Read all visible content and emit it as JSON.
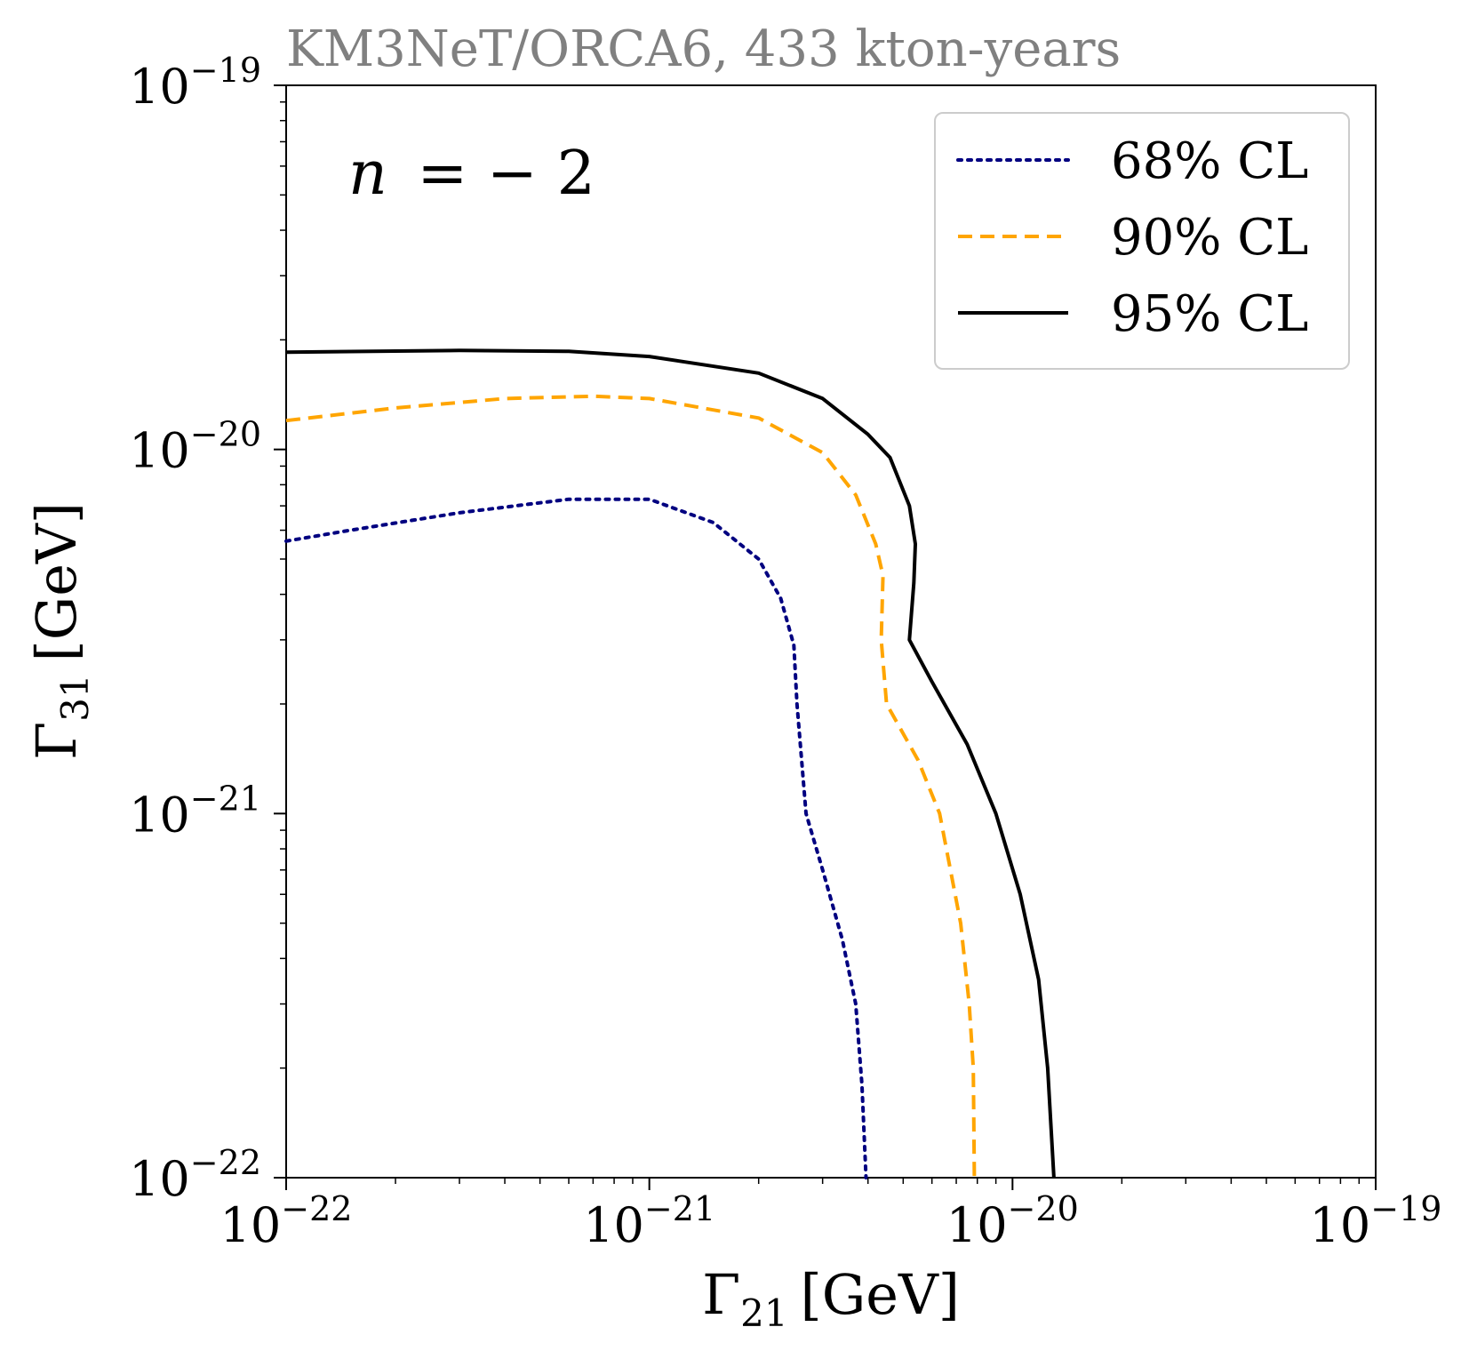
{
  "chart_data": {
    "type": "line",
    "title": "KM3NeT/ORCA6, 433 kton-years",
    "annotation": {
      "text": "n = − 2",
      "var": "n",
      "rest": "= − 2"
    },
    "xlabel": {
      "symbol": "Γ",
      "sub": "21",
      "unit": "[GeV]"
    },
    "ylabel": {
      "symbol": "Γ",
      "sub": "31",
      "unit": "[GeV]"
    },
    "xscale": "log",
    "yscale": "log",
    "xlim": [
      1e-22,
      1e-19
    ],
    "ylim": [
      1e-22,
      1e-19
    ],
    "xticks": [
      {
        "value": 1e-22,
        "base": "10",
        "exp": "−22"
      },
      {
        "value": 1e-21,
        "base": "10",
        "exp": "−21"
      },
      {
        "value": 1e-20,
        "base": "10",
        "exp": "−20"
      },
      {
        "value": 1e-19,
        "base": "10",
        "exp": "−19"
      }
    ],
    "yticks": [
      {
        "value": 1e-22,
        "base": "10",
        "exp": "−22"
      },
      {
        "value": 1e-21,
        "base": "10",
        "exp": "−21"
      },
      {
        "value": 1e-20,
        "base": "10",
        "exp": "−20"
      },
      {
        "value": 1e-19,
        "base": "10",
        "exp": "−19"
      }
    ],
    "grid": false,
    "legend_position": "top-right",
    "series": [
      {
        "name": "68% CL",
        "color": "#000080",
        "style": "dotted",
        "x": [
          1e-22,
          1.5e-22,
          3e-22,
          6e-22,
          1e-21,
          1.5e-21,
          2e-21,
          2.3e-21,
          2.5e-21,
          2.55e-21,
          2.7e-21,
          3e-21,
          3.4e-21,
          3.7e-21,
          3.85e-21,
          3.95e-21
        ],
        "y": [
          5.6e-21,
          6e-21,
          6.7e-21,
          7.3e-21,
          7.3e-21,
          6.3e-21,
          5e-21,
          3.9e-21,
          2.9e-21,
          2e-21,
          1e-21,
          7e-22,
          4.5e-22,
          3e-22,
          1.8e-22,
          1e-22
        ]
      },
      {
        "name": "90% CL",
        "color": "#FFA500",
        "style": "dashed",
        "x": [
          1e-22,
          2e-22,
          4e-22,
          7e-22,
          1e-21,
          2e-21,
          3e-21,
          3.7e-21,
          4.2e-21,
          4.4e-21,
          4.35e-21,
          4.5e-21,
          5.5e-21,
          6.3e-21,
          7.2e-21,
          7.6e-21,
          7.8e-21,
          7.85e-21
        ],
        "y": [
          1.2e-20,
          1.3e-20,
          1.38e-20,
          1.4e-20,
          1.38e-20,
          1.22e-20,
          9.8e-21,
          7.5e-21,
          5.5e-21,
          4.5e-21,
          3e-21,
          2e-21,
          1.4e-21,
          1e-21,
          5e-22,
          3e-22,
          2e-22,
          1e-22
        ]
      },
      {
        "name": "95% CL",
        "color": "#000000",
        "style": "solid",
        "x": [
          1e-22,
          3e-22,
          6e-22,
          1e-21,
          2e-21,
          3e-21,
          4e-21,
          4.6e-21,
          5.2e-21,
          5.4e-21,
          5.35e-21,
          5.2e-21,
          6e-21,
          7.5e-21,
          9e-21,
          1.05e-20,
          1.18e-20,
          1.25e-20,
          1.3e-20
        ],
        "y": [
          1.85e-20,
          1.87e-20,
          1.86e-20,
          1.8e-20,
          1.62e-20,
          1.38e-20,
          1.1e-20,
          9.5e-21,
          7e-21,
          5.5e-21,
          4.3e-21,
          3e-21,
          2.3e-21,
          1.55e-21,
          1e-21,
          6e-22,
          3.5e-22,
          2e-22,
          1e-22
        ]
      }
    ]
  }
}
